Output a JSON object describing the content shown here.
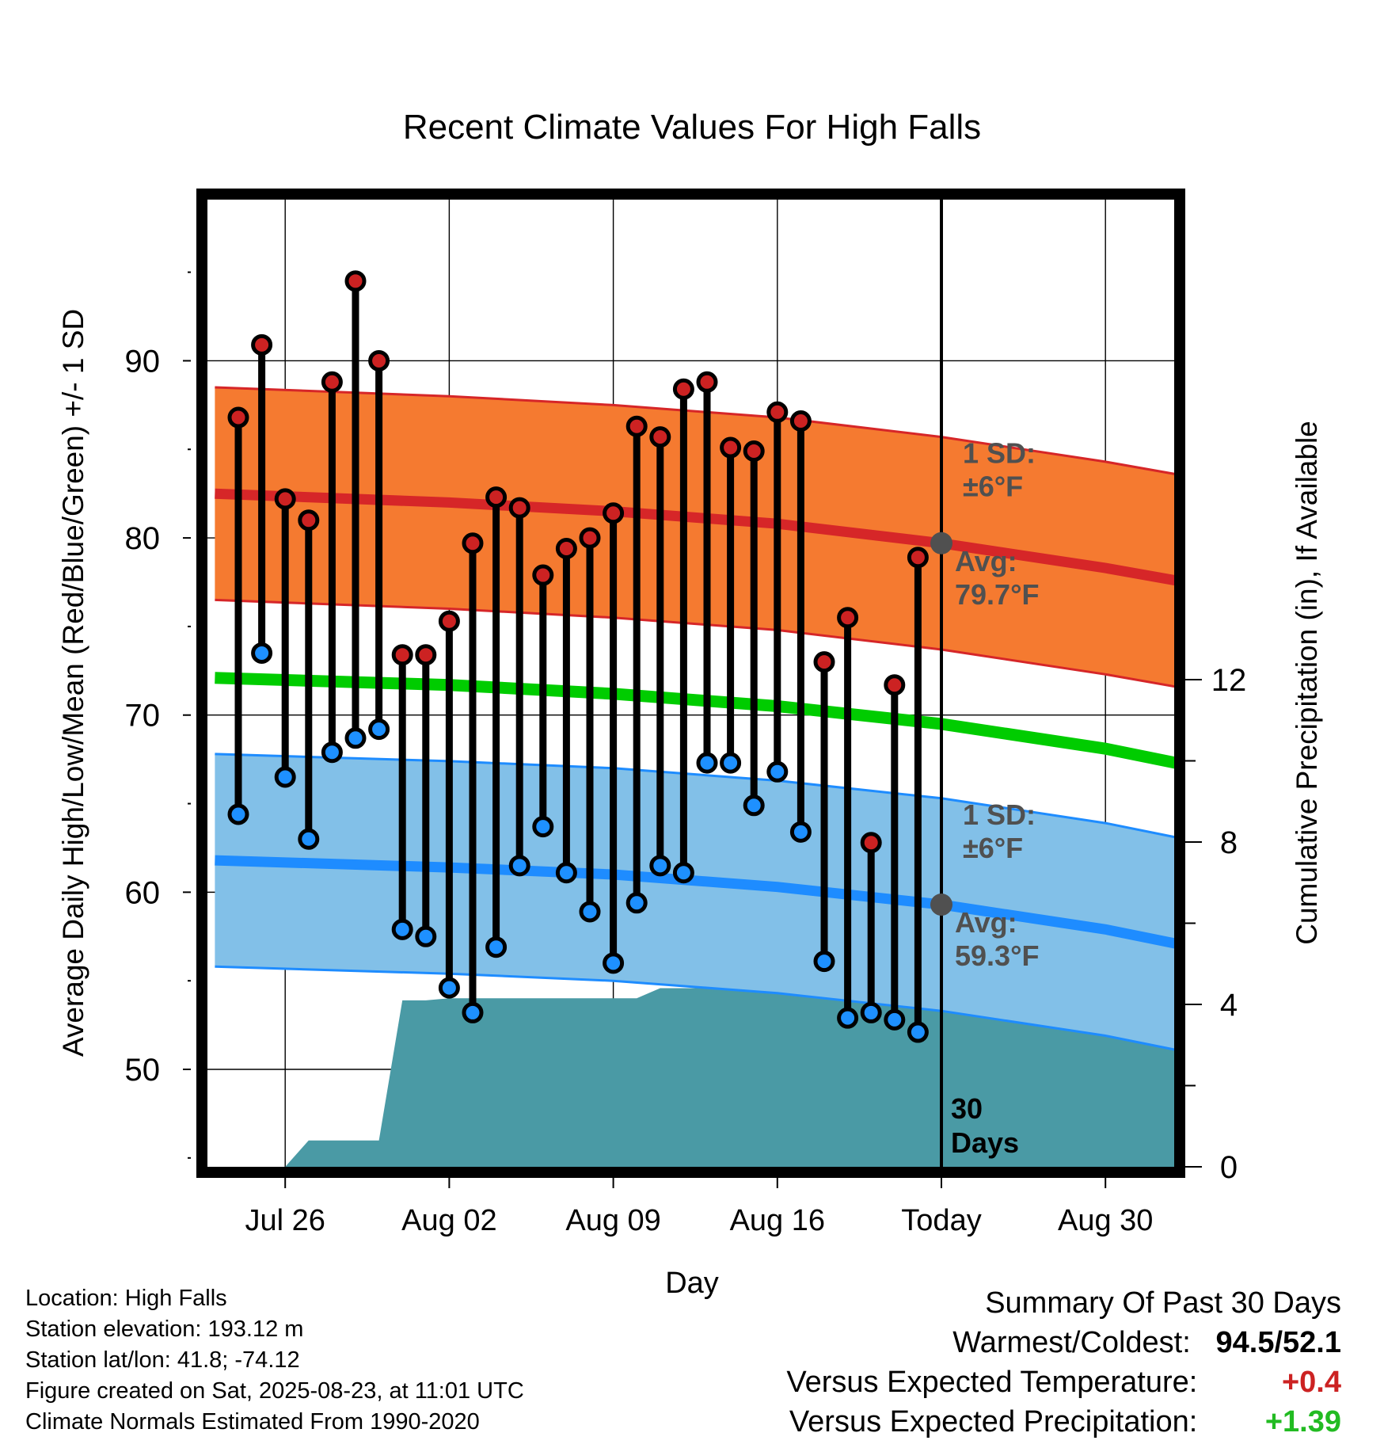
{
  "chart_data": {
    "type": "line",
    "title": "Recent Climate Values For High Falls",
    "xlabel": "Day",
    "ylabel": "Average Daily High/Low/Mean (Red/Blue/Green) +/- 1 SD",
    "y2label": "Cumulative Precipitation (in), If Available",
    "x_tick_labels": [
      "Jul 26",
      "Aug 02",
      "Aug 09",
      "Aug 16",
      "Today",
      "Aug 30"
    ],
    "y_ticks": [
      50,
      60,
      70,
      80,
      90
    ],
    "y2_ticks": [
      0,
      4,
      8,
      12
    ],
    "ylim": [
      44.5,
      99.5
    ],
    "y2lim": [
      0,
      24
    ],
    "grid": true,
    "days_offset_from_today": [
      -30,
      -29,
      -28,
      -27,
      -26,
      -25,
      -24,
      -23,
      -22,
      -21,
      -20,
      -19,
      -18,
      -17,
      -16,
      -15,
      -14,
      -13,
      -12,
      -11,
      -10,
      -9,
      -8,
      -7,
      -6,
      -5,
      -4,
      -3,
      -2,
      -1
    ],
    "daily_high": [
      86.8,
      90.9,
      82.2,
      81.0,
      88.8,
      94.5,
      90.0,
      73.4,
      73.4,
      75.3,
      79.7,
      82.3,
      81.7,
      77.9,
      79.4,
      80.0,
      81.4,
      86.3,
      85.7,
      88.4,
      88.8,
      85.1,
      84.9,
      87.1,
      86.6,
      73.0,
      75.5,
      62.8,
      71.7,
      78.9
    ],
    "daily_low": [
      64.4,
      73.5,
      66.5,
      63.0,
      67.9,
      68.7,
      69.2,
      57.9,
      57.5,
      54.6,
      53.2,
      56.9,
      61.5,
      63.7,
      61.1,
      58.9,
      56.0,
      59.4,
      61.5,
      61.1,
      67.3,
      67.3,
      64.9,
      66.8,
      63.4,
      56.1,
      52.9,
      53.2,
      52.8,
      52.1
    ],
    "normal_high": {
      "x": [
        -31,
        -21,
        -14,
        -7,
        0,
        7,
        10
      ],
      "values": [
        82.5,
        82.0,
        81.5,
        80.8,
        79.7,
        78.3,
        77.6
      ]
    },
    "normal_low": {
      "x": [
        -31,
        -21,
        -14,
        -7,
        0,
        7,
        10
      ],
      "values": [
        61.8,
        61.4,
        61.0,
        60.3,
        59.3,
        57.9,
        57.1
      ]
    },
    "normal_mean": {
      "x": [
        -31,
        -21,
        -14,
        -7,
        0,
        7,
        10
      ],
      "values": [
        72.1,
        71.7,
        71.2,
        70.5,
        69.5,
        68.1,
        67.3
      ]
    },
    "sd_degrees_f": 6,
    "cumulative_precip": {
      "x": [
        -31,
        -28,
        -27,
        -24,
        -23,
        -22,
        -21,
        -20,
        -13,
        -12,
        -11,
        -10,
        -9,
        -8,
        -6,
        -4,
        -3.5,
        -3,
        -2,
        -1,
        0,
        10
      ],
      "values": [
        0,
        0,
        0.65,
        0.65,
        4.1,
        4.1,
        4.15,
        4.15,
        4.15,
        4.4,
        4.4,
        4.4,
        4.45,
        4.45,
        4.45,
        4.45,
        4.5,
        5.6,
        5.65,
        5.65,
        5.65,
        5.65
      ]
    },
    "annotations": {
      "high_sd": "1 SD:",
      "high_sd_val": "±6°F",
      "high_avg": "Avg:",
      "high_avg_val": "79.7°F",
      "low_sd": "1 SD:",
      "low_sd_val": "±6°F",
      "low_avg": "Avg:",
      "low_avg_val": "59.3°F",
      "window_count": "30",
      "window_unit": "Days"
    },
    "colors": {
      "high_band": "#f57a30",
      "high_line": "#d62628",
      "low_band": "#82c0e8",
      "low_line": "#1e8cff",
      "mean_line": "#00cc00",
      "precip": "#4a9aa5",
      "high_marker": "#cc2222",
      "low_marker": "#1e90ff"
    }
  },
  "footer": {
    "location": "Location: High Falls",
    "elevation": "Station elevation: 193.12 m",
    "latlon": "Station lat/lon: 41.8; -74.12",
    "created": "Figure created on Sat, 2025-08-23, at 11:01 UTC",
    "normals": "Climate Normals Estimated From 1990-2020"
  },
  "summary": {
    "heading": "Summary Of Past 30 Days",
    "warm_cold_label": "Warmest/Coldest:",
    "warm_value": "94.5",
    "cold_value": "52.1",
    "temp_label": "Versus Expected Temperature:",
    "temp_value": "+0.4",
    "temp_color": "#cc2222",
    "precip_label": "Versus Expected Precipitation:",
    "precip_value": "+1.39",
    "precip_color": "#22bb22"
  }
}
